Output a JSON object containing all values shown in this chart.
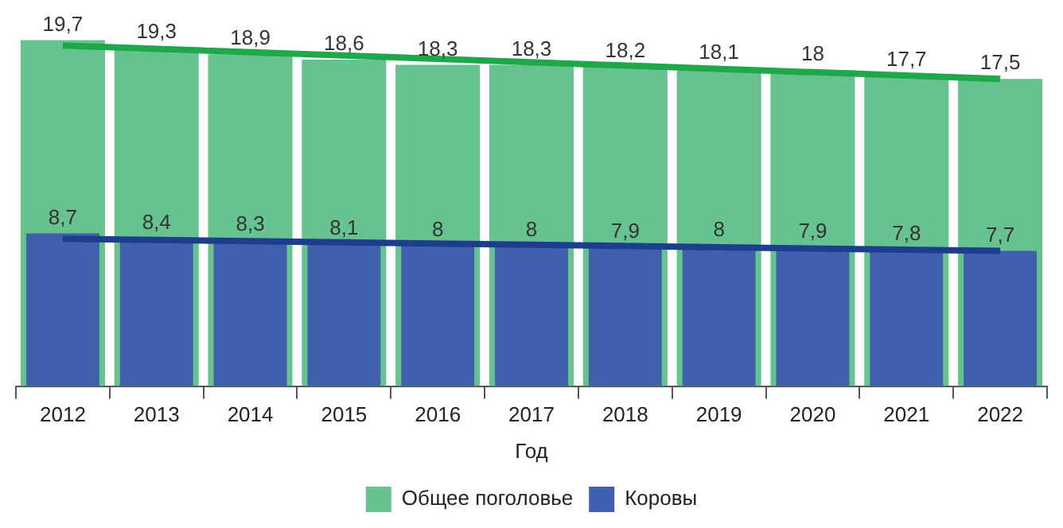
{
  "chart_data": {
    "type": "bar",
    "xlabel": "Год",
    "categories": [
      "2012",
      "2013",
      "2014",
      "2015",
      "2016",
      "2017",
      "2018",
      "2019",
      "2020",
      "2021",
      "2022"
    ],
    "series": [
      {
        "name": "Общее поголовье",
        "color": "#66c28e",
        "values": [
          19.7,
          19.3,
          18.9,
          18.6,
          18.3,
          18.3,
          18.2,
          18.1,
          18,
          17.7,
          17.5
        ],
        "value_labels": [
          "19,7",
          "19,3",
          "18,9",
          "18,6",
          "18,3",
          "18,3",
          "18,2",
          "18,1",
          "18",
          "17,7",
          "17,5"
        ]
      },
      {
        "name": "Коровы",
        "color": "#405fad",
        "values": [
          8.7,
          8.4,
          8.3,
          8.1,
          8,
          8,
          7.9,
          8,
          7.9,
          7.8,
          7.7
        ],
        "value_labels": [
          "8,7",
          "8,4",
          "8,3",
          "8,1",
          "8",
          "8",
          "7,9",
          "8",
          "7,9",
          "7,8",
          "7,7"
        ]
      },
      {
        "type": "line",
        "color": "#1fa84a",
        "values": [
          19.4,
          null,
          null,
          null,
          null,
          null,
          null,
          null,
          null,
          null,
          17.5
        ]
      },
      {
        "type": "line",
        "color": "#1d3e8f",
        "values": [
          8.4,
          null,
          null,
          null,
          null,
          null,
          null,
          null,
          null,
          null,
          7.7
        ]
      }
    ],
    "legend": "bottom"
  }
}
